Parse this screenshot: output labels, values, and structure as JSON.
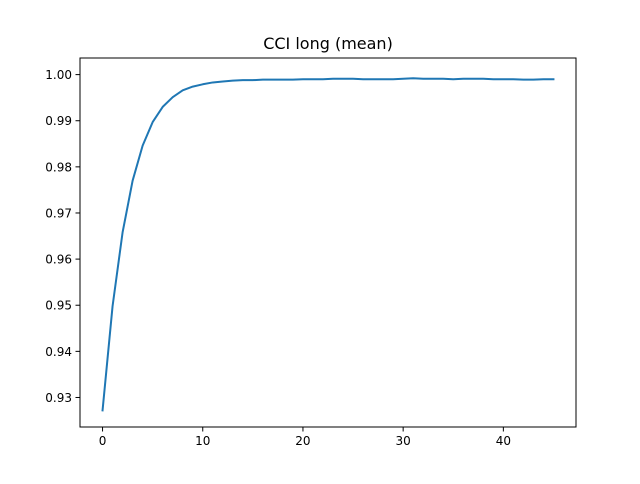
{
  "chart_data": {
    "type": "line",
    "title": "CCI long (mean)",
    "xlabel": "",
    "ylabel": "",
    "xlim": [
      -2.25,
      47.25
    ],
    "ylim": [
      0.9236,
      1.0036
    ],
    "xticks": [
      0,
      10,
      20,
      30,
      40
    ],
    "xtick_labels": [
      "0",
      "10",
      "20",
      "30",
      "40"
    ],
    "yticks": [
      0.93,
      0.94,
      0.95,
      0.96,
      0.97,
      0.98,
      0.99,
      1.0
    ],
    "ytick_labels": [
      "0.93",
      "0.94",
      "0.95",
      "0.96",
      "0.97",
      "0.98",
      "0.99",
      "1.00"
    ],
    "grid": false,
    "legend": "none",
    "series": [
      {
        "color": "#1f77b4",
        "x": [
          0,
          1,
          2,
          3,
          4,
          5,
          6,
          7,
          8,
          9,
          10,
          11,
          12,
          13,
          14,
          15,
          16,
          17,
          18,
          19,
          20,
          21,
          22,
          23,
          24,
          25,
          26,
          27,
          28,
          29,
          30,
          31,
          32,
          33,
          34,
          35,
          36,
          37,
          38,
          39,
          40,
          41,
          42,
          43,
          44,
          45
        ],
        "y": [
          0.9272,
          0.9498,
          0.9658,
          0.977,
          0.9846,
          0.9897,
          0.993,
          0.9951,
          0.9966,
          0.9974,
          0.9979,
          0.9983,
          0.9985,
          0.9987,
          0.9988,
          0.9988,
          0.9989,
          0.9989,
          0.9989,
          0.9989,
          0.999,
          0.999,
          0.999,
          0.9991,
          0.9991,
          0.9991,
          0.999,
          0.999,
          0.999,
          0.999,
          0.9991,
          0.9992,
          0.9991,
          0.9991,
          0.9991,
          0.999,
          0.9991,
          0.9991,
          0.9991,
          0.999,
          0.999,
          0.999,
          0.9989,
          0.9989,
          0.999,
          0.999
        ]
      }
    ]
  }
}
